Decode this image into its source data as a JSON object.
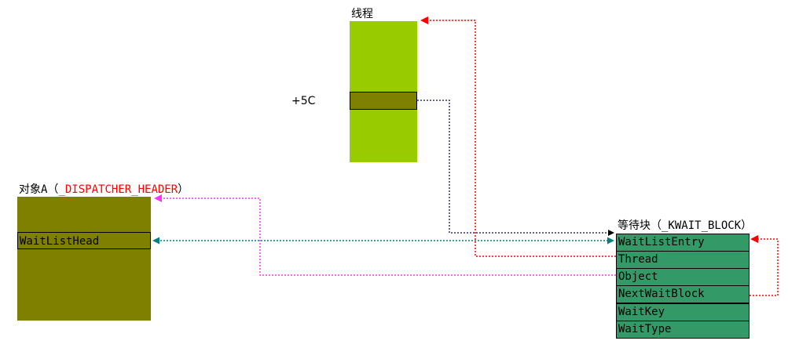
{
  "thread": {
    "title": "线程",
    "offset_label": "+5C"
  },
  "object": {
    "title_prefix": "对象A（",
    "title_type": "_DISPATCHER_HEADER",
    "title_suffix": "）",
    "field": "WaitListHead"
  },
  "wait_block": {
    "title": "等待块（_KWAIT_BLOCK）",
    "fields": [
      "WaitListEntry",
      "Thread",
      "Object",
      "NextWaitBlock",
      "WaitKey",
      "WaitType"
    ]
  },
  "colors": {
    "thread_body": "#99cc00",
    "field_fill": "#808000",
    "wait_fill": "#339966",
    "arrow_red": "#ff0000",
    "arrow_magenta": "#ff33ff",
    "arrow_teal": "#008080",
    "arrow_black": "#000000"
  }
}
